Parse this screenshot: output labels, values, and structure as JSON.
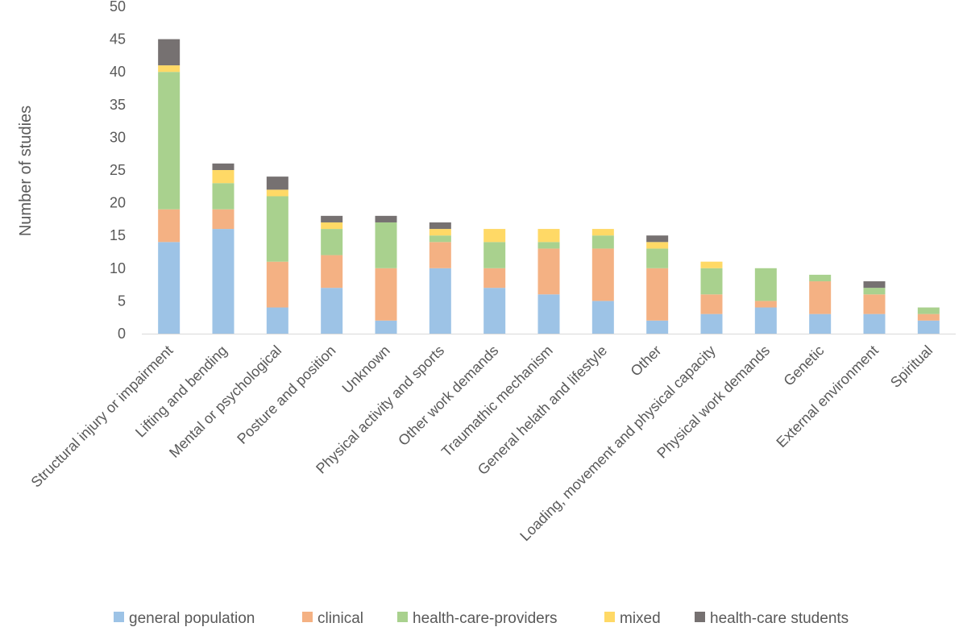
{
  "chart_data": {
    "type": "bar",
    "stacked": true,
    "title": "",
    "xlabel": "",
    "ylabel": "Number of studies",
    "ylim": [
      0,
      50
    ],
    "yticks": [
      0,
      5,
      10,
      15,
      20,
      25,
      30,
      35,
      40,
      45,
      50
    ],
    "grid": false,
    "legend": "bottom",
    "categories": [
      "Structural injury or impairment",
      "Lifting and bending",
      "Mental or psychological",
      "Posture and position",
      "Unknown",
      "Physical activity and sports",
      "Other work demands",
      "Traumathic mechanism",
      "General helath and lifestyle",
      "Other",
      "Loading, movement and physical capacity",
      "Physical work demands",
      "Genetic",
      "External environment",
      "Spiritual"
    ],
    "series": [
      {
        "name": "general population",
        "color": "#9dc3e6",
        "values": [
          14,
          16,
          4,
          7,
          2,
          10,
          7,
          6,
          5,
          2,
          3,
          4,
          3,
          3,
          2
        ]
      },
      {
        "name": "clinical",
        "color": "#f4b183",
        "values": [
          5,
          3,
          7,
          5,
          8,
          4,
          3,
          7,
          8,
          8,
          3,
          1,
          5,
          3,
          1
        ]
      },
      {
        "name": "health-care-providers",
        "color": "#a9d18e",
        "values": [
          21,
          4,
          10,
          4,
          7,
          1,
          4,
          1,
          2,
          3,
          4,
          5,
          1,
          1,
          1
        ]
      },
      {
        "name": "mixed",
        "color": "#ffd966",
        "values": [
          1,
          2,
          1,
          1,
          0,
          1,
          2,
          2,
          1,
          1,
          1,
          0,
          0,
          0,
          0
        ]
      },
      {
        "name": "health-care students",
        "color": "#767171",
        "values": [
          4,
          1,
          2,
          1,
          1,
          1,
          0,
          0,
          0,
          1,
          0,
          0,
          0,
          1,
          0
        ]
      }
    ]
  }
}
